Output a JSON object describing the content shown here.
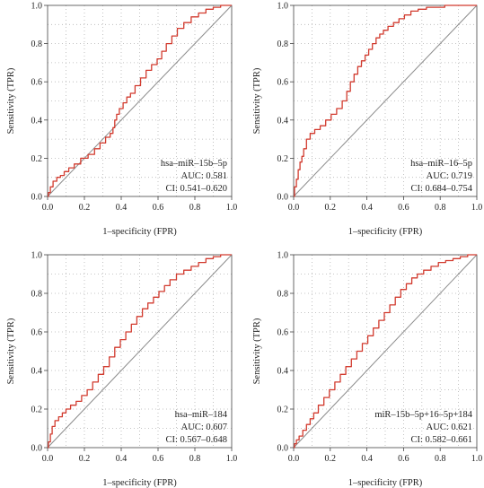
{
  "chart_data": [
    {
      "type": "line",
      "xlabel": "1–specificity (FPR)",
      "ylabel": "Sensitivity (TPR)",
      "xlim": [
        0,
        1
      ],
      "ylim": [
        0,
        1
      ],
      "xticks": [
        "0.0",
        "0.2",
        "0.4",
        "0.6",
        "0.8",
        "1.0"
      ],
      "yticks": [
        "0.0",
        "0.2",
        "0.4",
        "0.6",
        "0.8",
        "1.0"
      ],
      "grid": true,
      "annotation": [
        "hsa–miR–15b–5p",
        "AUC: 0.581",
        "CI: 0.541–0.620"
      ],
      "series": [
        {
          "x": [
            0,
            0.01,
            0.02,
            0.04,
            0.06,
            0.08,
            0.1,
            0.13,
            0.16,
            0.2,
            0.24,
            0.27,
            0.3,
            0.33,
            0.35,
            0.36,
            0.37,
            0.38,
            0.4,
            0.42,
            0.44,
            0.46,
            0.49,
            0.52,
            0.55,
            0.58,
            0.61,
            0.63,
            0.66,
            0.69,
            0.72,
            0.76,
            0.8,
            0.84,
            0.88,
            0.92,
            0.96,
            1.0
          ],
          "y": [
            0,
            0.02,
            0.05,
            0.08,
            0.1,
            0.11,
            0.13,
            0.15,
            0.17,
            0.2,
            0.22,
            0.25,
            0.28,
            0.31,
            0.33,
            0.36,
            0.4,
            0.43,
            0.46,
            0.49,
            0.52,
            0.54,
            0.58,
            0.62,
            0.66,
            0.69,
            0.72,
            0.76,
            0.8,
            0.84,
            0.88,
            0.91,
            0.94,
            0.96,
            0.98,
            0.99,
            1.0,
            1.0
          ]
        }
      ]
    },
    {
      "type": "line",
      "xlabel": "1–specificity (FPR)",
      "ylabel": "Sensitivity (TPR)",
      "xlim": [
        0,
        1
      ],
      "ylim": [
        0,
        1
      ],
      "xticks": [
        "0.0",
        "0.2",
        "0.4",
        "0.6",
        "0.8",
        "1.0"
      ],
      "yticks": [
        "0.0",
        "0.2",
        "0.4",
        "0.6",
        "0.8",
        "1.0"
      ],
      "grid": true,
      "annotation": [
        "hsa–miR–16–5p",
        "AUC: 0.719",
        "CI: 0.684–0.754"
      ],
      "series": [
        {
          "x": [
            0,
            0.01,
            0.02,
            0.03,
            0.04,
            0.05,
            0.06,
            0.08,
            0.1,
            0.13,
            0.16,
            0.19,
            0.22,
            0.25,
            0.28,
            0.3,
            0.32,
            0.34,
            0.36,
            0.38,
            0.4,
            0.42,
            0.44,
            0.46,
            0.48,
            0.5,
            0.53,
            0.56,
            0.59,
            0.62,
            0.66,
            0.7,
            0.75,
            0.8,
            0.85,
            0.9,
            0.95,
            1.0
          ],
          "y": [
            0,
            0.05,
            0.09,
            0.14,
            0.18,
            0.21,
            0.25,
            0.3,
            0.33,
            0.35,
            0.37,
            0.4,
            0.43,
            0.46,
            0.5,
            0.55,
            0.6,
            0.64,
            0.68,
            0.71,
            0.74,
            0.77,
            0.8,
            0.83,
            0.85,
            0.87,
            0.89,
            0.91,
            0.93,
            0.95,
            0.97,
            0.98,
            0.99,
            0.99,
            1.0,
            1.0,
            1.0,
            1.0
          ]
        }
      ]
    },
    {
      "type": "line",
      "xlabel": "1–specificity (FPR)",
      "ylabel": "Sensitivity (TPR)",
      "xlim": [
        0,
        1
      ],
      "ylim": [
        0,
        1
      ],
      "xticks": [
        "0.0",
        "0.2",
        "0.4",
        "0.6",
        "0.8",
        "1.0"
      ],
      "yticks": [
        "0.0",
        "0.2",
        "0.4",
        "0.6",
        "0.8",
        "1.0"
      ],
      "grid": true,
      "annotation": [
        "hsa–miR–184",
        "AUC: 0.607",
        "CI: 0.567–0.648"
      ],
      "series": [
        {
          "x": [
            0,
            0.01,
            0.02,
            0.03,
            0.05,
            0.07,
            0.09,
            0.11,
            0.14,
            0.17,
            0.2,
            0.23,
            0.26,
            0.29,
            0.32,
            0.35,
            0.38,
            0.41,
            0.44,
            0.47,
            0.5,
            0.53,
            0.56,
            0.59,
            0.62,
            0.65,
            0.68,
            0.72,
            0.76,
            0.8,
            0.84,
            0.88,
            0.92,
            0.96,
            1.0
          ],
          "y": [
            0,
            0.03,
            0.07,
            0.11,
            0.14,
            0.16,
            0.18,
            0.2,
            0.22,
            0.24,
            0.27,
            0.3,
            0.34,
            0.38,
            0.42,
            0.47,
            0.52,
            0.56,
            0.6,
            0.64,
            0.68,
            0.72,
            0.75,
            0.78,
            0.81,
            0.84,
            0.87,
            0.9,
            0.92,
            0.94,
            0.96,
            0.98,
            0.99,
            1.0,
            1.0
          ]
        }
      ]
    },
    {
      "type": "line",
      "xlabel": "1–specificity (FPR)",
      "ylabel": "Sensitivity (TPR)",
      "xlim": [
        0,
        1
      ],
      "ylim": [
        0,
        1
      ],
      "xticks": [
        "0.0",
        "0.2",
        "0.4",
        "0.6",
        "0.8",
        "1.0"
      ],
      "yticks": [
        "0.0",
        "0.2",
        "0.4",
        "0.6",
        "0.8",
        "1.0"
      ],
      "grid": true,
      "annotation": [
        "miR–15b–5p+16–5p+184",
        "AUC: 0.621",
        "CI: 0.582–0.661"
      ],
      "series": [
        {
          "x": [
            0,
            0.01,
            0.02,
            0.04,
            0.06,
            0.08,
            0.1,
            0.12,
            0.15,
            0.18,
            0.21,
            0.24,
            0.27,
            0.3,
            0.33,
            0.36,
            0.39,
            0.42,
            0.45,
            0.48,
            0.51,
            0.54,
            0.57,
            0.6,
            0.63,
            0.66,
            0.69,
            0.73,
            0.77,
            0.81,
            0.85,
            0.89,
            0.93,
            0.97,
            1.0
          ],
          "y": [
            0,
            0.02,
            0.04,
            0.06,
            0.09,
            0.12,
            0.15,
            0.18,
            0.22,
            0.26,
            0.3,
            0.34,
            0.38,
            0.42,
            0.46,
            0.5,
            0.54,
            0.58,
            0.62,
            0.66,
            0.7,
            0.74,
            0.78,
            0.82,
            0.85,
            0.88,
            0.9,
            0.92,
            0.94,
            0.96,
            0.97,
            0.98,
            0.99,
            1.0,
            1.0
          ]
        }
      ]
    }
  ],
  "colors": {
    "roc": "#d23b2f",
    "diagonal": "#8c8c8c",
    "grid": "#b4b4b4",
    "axis": "#444444"
  }
}
